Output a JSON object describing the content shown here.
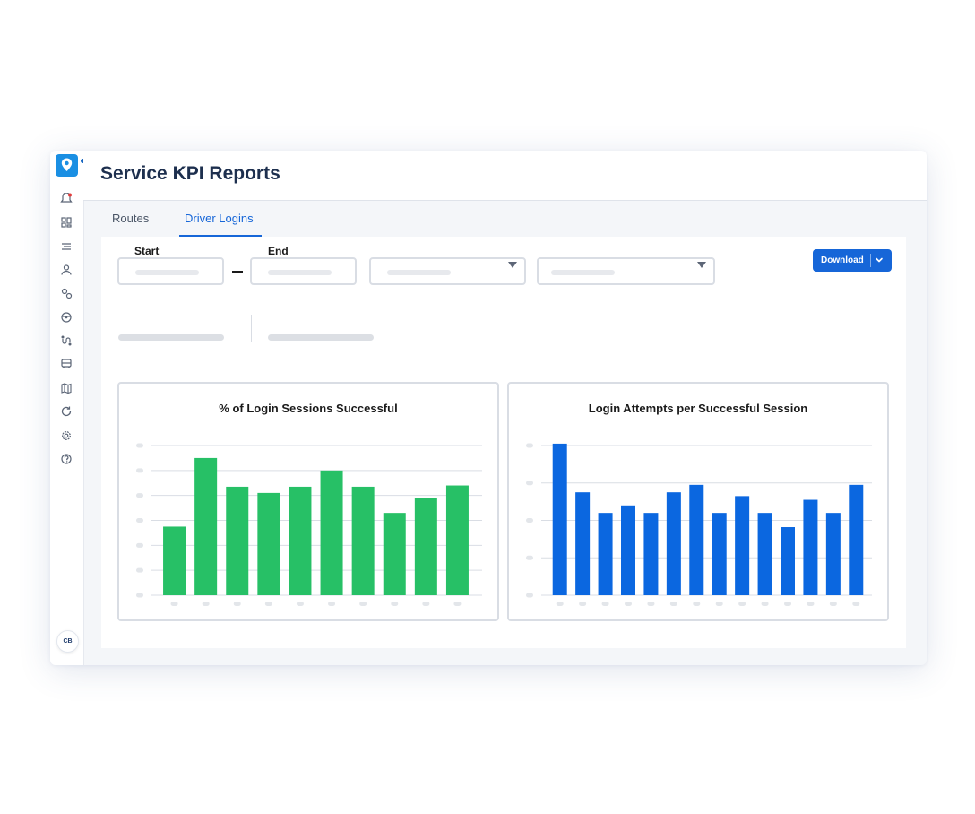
{
  "app": {
    "title": "Service KPI Reports",
    "user_initials": "CB",
    "accent": "#1666d8",
    "brand": "#1a8fe3"
  },
  "sidebar": {
    "icons": [
      "notification-icon",
      "dashboard-icon",
      "list-icon",
      "user-icon",
      "location-icon",
      "steering-wheel-icon",
      "route-icon",
      "bus-icon",
      "map-icon",
      "refresh-icon",
      "settings-icon",
      "help-icon"
    ]
  },
  "tabs": [
    {
      "label": "Routes",
      "active": false
    },
    {
      "label": "Driver Logins",
      "active": true
    }
  ],
  "filters": {
    "start_label": "Start",
    "end_label": "End",
    "download_label": "Download"
  },
  "charts": {
    "left_title": "% of Login Sessions Successful",
    "right_title": "Login Attempts per Successful Session"
  },
  "chart_data": [
    {
      "type": "bar",
      "title": "% of Login Sessions Successful",
      "color": "#27c066",
      "grid": true,
      "ylim": [
        0,
        6
      ],
      "gridlines": 7,
      "values": [
        2.75,
        5.5,
        4.35,
        4.1,
        4.35,
        5.0,
        4.35,
        3.3,
        3.9,
        4.4
      ]
    },
    {
      "type": "bar",
      "title": "Login Attempts per Successful Session",
      "color": "#0b67e0",
      "grid": true,
      "ylim": [
        0,
        4
      ],
      "gridlines": 5,
      "values": [
        4.05,
        2.75,
        2.2,
        2.4,
        2.2,
        2.75,
        2.95,
        2.2,
        2.65,
        2.2,
        1.82,
        2.55,
        2.2,
        2.95
      ]
    }
  ]
}
